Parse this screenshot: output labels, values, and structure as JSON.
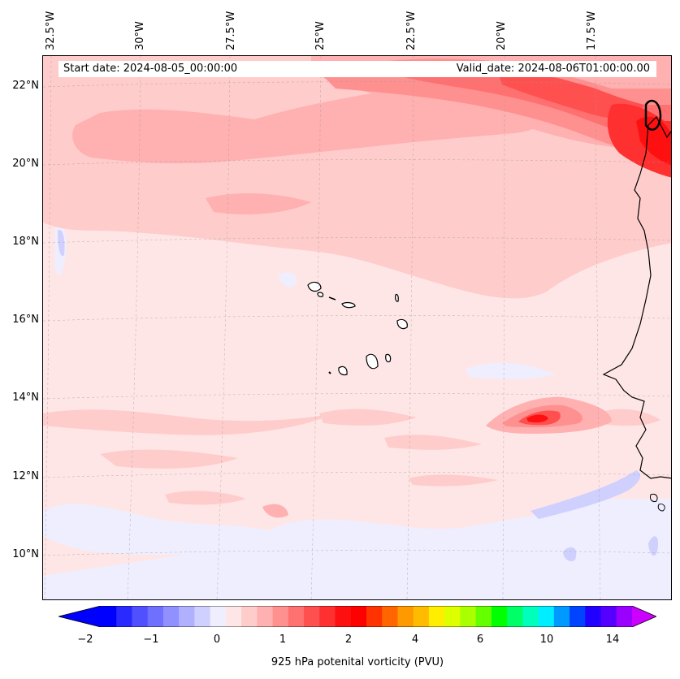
{
  "header": {
    "start_date": "Start date: 2024-08-05_00:00:00",
    "valid_date": "Valid_date: 2024-08-06T01:00:00.00"
  },
  "axes": {
    "lon_labels": [
      "32.5°W",
      "30°W",
      "27.5°W",
      "25°W",
      "22.5°W",
      "20°W",
      "17.5°W"
    ],
    "lat_labels": [
      "22°N",
      "20°N",
      "18°N",
      "16°N",
      "14°N",
      "12°N",
      "10°N"
    ]
  },
  "colorbar": {
    "ticks": [
      "−2",
      "−1",
      "0",
      "1",
      "2",
      "4",
      "6",
      "10",
      "14"
    ],
    "label": "925 hPa potenital vorticity (PVU)",
    "colors": [
      "#0000ff",
      "#2a2aff",
      "#5050ff",
      "#7070ff",
      "#9090ff",
      "#b0b0ff",
      "#d0d0ff",
      "#eeeeff",
      "#ffe6e6",
      "#ffcccc",
      "#ffb0b0",
      "#ff9090",
      "#ff7070",
      "#ff5050",
      "#ff3030",
      "#ff1010",
      "#ff0000",
      "#ff3300",
      "#ff6600",
      "#ff9900",
      "#ffbb00",
      "#ffee00",
      "#ddff00",
      "#aaff00",
      "#66ff00",
      "#00ff00",
      "#00ff66",
      "#00ffbb",
      "#00eeff",
      "#0099ff",
      "#0044ff",
      "#2200ff",
      "#5500ff",
      "#9900ff"
    ],
    "extend_low_color": "#0000ff",
    "extend_high_color": "#cc00ff"
  },
  "map": {
    "background_color": "#ffe6e6",
    "coastline_color": "#000000"
  }
}
